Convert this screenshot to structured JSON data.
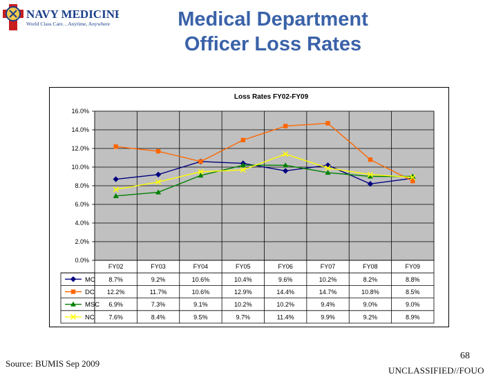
{
  "slide": {
    "title_line1": "Medical Department",
    "title_line2": "Officer Loss Rates",
    "logo_name": "NAVY MEDICINE",
    "logo_tagline": "World Class Care…Anytime, Anywhere",
    "source": "Source: BUMIS Sep 2009",
    "page_number": "68",
    "classification": "UNCLASSIFIED//FOUO",
    "title_color": "#3a62a8"
  },
  "chart_data": {
    "type": "line",
    "title": "Loss Rates FY02-FY09",
    "categories": [
      "FY02",
      "FY03",
      "FY04",
      "FY05",
      "FY06",
      "FY07",
      "FY08",
      "FY09"
    ],
    "ylim": [
      0,
      16
    ],
    "yticks": [
      "0.0%",
      "2.0%",
      "4.0%",
      "6.0%",
      "8.0%",
      "10.0%",
      "12.0%",
      "14.0%",
      "16.0%"
    ],
    "grid": true,
    "plot_background": "#c0c0c0",
    "series": [
      {
        "name": "MC",
        "color": "#000080",
        "marker": "diamond",
        "values": [
          8.7,
          9.2,
          10.6,
          10.4,
          9.6,
          10.2,
          8.2,
          8.8
        ],
        "labels": [
          "8.7%",
          "9.2%",
          "10.6%",
          "10.4%",
          "9.6%",
          "10.2%",
          "8.2%",
          "8.8%"
        ]
      },
      {
        "name": "DC",
        "color": "#ff6600",
        "marker": "square",
        "values": [
          12.2,
          11.7,
          10.6,
          12.9,
          14.4,
          14.7,
          10.8,
          8.5
        ],
        "labels": [
          "12.2%",
          "11.7%",
          "10.6%",
          "12.9%",
          "14.4%",
          "14.7%",
          "10.8%",
          "8.5%"
        ]
      },
      {
        "name": "MSC",
        "color": "#008000",
        "marker": "triangle",
        "values": [
          6.9,
          7.3,
          9.1,
          10.2,
          10.2,
          9.4,
          9.0,
          9.0
        ],
        "labels": [
          "6.9%",
          "7.3%",
          "9.1%",
          "10.2%",
          "10.2%",
          "9.4%",
          "9.0%",
          "9.0%"
        ]
      },
      {
        "name": "NC",
        "color": "#ffff00",
        "marker": "x",
        "values": [
          7.6,
          8.4,
          9.5,
          9.7,
          11.4,
          9.9,
          9.2,
          8.9
        ],
        "labels": [
          "7.6%",
          "8.4%",
          "9.5%",
          "9.7%",
          "11.4%",
          "9.9%",
          "9.2%",
          "8.9%"
        ]
      }
    ]
  }
}
